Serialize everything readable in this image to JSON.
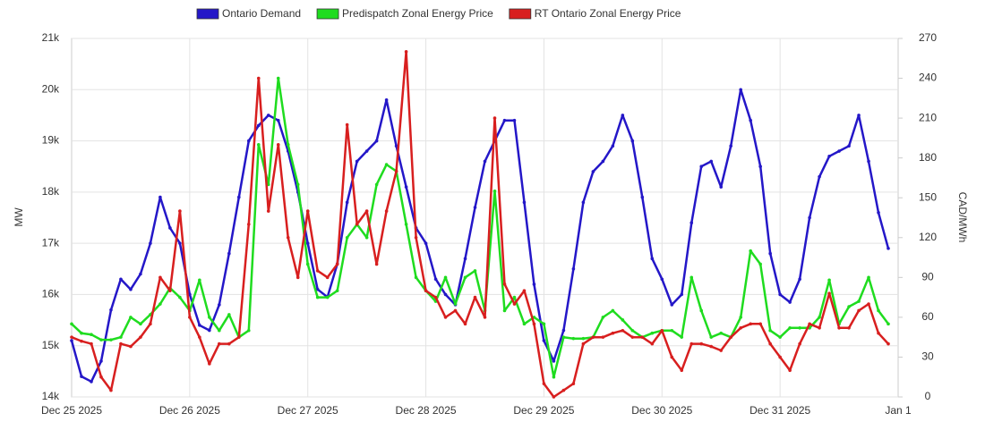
{
  "chart_data": {
    "type": "line",
    "categories": [
      "Dec 25 2025",
      null,
      null,
      null,
      null,
      null,
      null,
      null,
      null,
      null,
      null,
      null,
      "Dec 26 2025",
      null,
      null,
      null,
      null,
      null,
      null,
      null,
      null,
      null,
      null,
      null,
      "Dec 27 2025",
      null,
      null,
      null,
      null,
      null,
      null,
      null,
      null,
      null,
      null,
      null,
      "Dec 28 2025",
      null,
      null,
      null,
      null,
      null,
      null,
      null,
      null,
      null,
      null,
      null,
      "Dec 29 2025",
      null,
      null,
      null,
      null,
      null,
      null,
      null,
      null,
      null,
      null,
      null,
      "Dec 30 2025",
      null,
      null,
      null,
      null,
      null,
      null,
      null,
      null,
      null,
      null,
      null,
      "Dec 31 2025",
      null,
      null,
      null,
      null,
      null,
      null,
      null,
      null,
      null,
      null,
      null,
      "Jan 1"
    ],
    "ylabel": "MW",
    "y2label": "CAD/MWh",
    "ylim": [
      14000,
      21000
    ],
    "yticks": [
      {
        "value": 14000,
        "label": "14k"
      },
      {
        "value": 15000,
        "label": "15k"
      },
      {
        "value": 16000,
        "label": "16k"
      },
      {
        "value": 17000,
        "label": "17k"
      },
      {
        "value": 18000,
        "label": "18k"
      },
      {
        "value": 19000,
        "label": "19k"
      },
      {
        "value": 20000,
        "label": "20k"
      },
      {
        "value": 21000,
        "label": "21k"
      }
    ],
    "y2lim": [
      0,
      270
    ],
    "y2ticks": [
      0,
      30,
      60,
      90,
      120,
      150,
      180,
      210,
      240,
      270
    ],
    "grid": true,
    "legend": "top",
    "series": [
      {
        "name": "Ontario Demand",
        "color": "#2417c8",
        "values": [
          15100,
          14400,
          14300,
          14700,
          15700,
          16300,
          16100,
          16400,
          17000,
          17900,
          17300,
          17000,
          16000,
          15400,
          15300,
          15800,
          16800,
          17900,
          19000,
          19300,
          19500,
          19400,
          18800,
          18000,
          17000,
          16100,
          15950,
          16600,
          17800,
          18600,
          18800,
          19000,
          19800,
          18900,
          18100,
          17300,
          17000,
          16300,
          16000,
          15800,
          16700,
          17700,
          18600,
          19000,
          19400,
          19400,
          17800,
          16200,
          15100,
          14700,
          15300,
          16500,
          17800,
          18400,
          18600,
          18900,
          19500,
          19000,
          17900,
          16700,
          16300,
          15800,
          16000,
          17400,
          18500,
          18600,
          18100,
          18900,
          20000,
          19400,
          18500,
          16800,
          16000,
          15850,
          16300,
          17500,
          18300,
          18700,
          18800,
          18900,
          19500,
          18600,
          17600,
          16900,
          null
        ]
      },
      {
        "name": "Predispatch Zonal Energy Price",
        "color": "#1fdc1f",
        "axis": "y2",
        "values": [
          55,
          48,
          47,
          43,
          43,
          45,
          60,
          55,
          62,
          70,
          82,
          75,
          65,
          88,
          60,
          50,
          62,
          45,
          50,
          190,
          160,
          240,
          190,
          160,
          100,
          75,
          75,
          80,
          120,
          130,
          120,
          160,
          175,
          170,
          130,
          90,
          80,
          72,
          90,
          70,
          90,
          95,
          65,
          155,
          65,
          75,
          55,
          60,
          55,
          15,
          45,
          44,
          44,
          45,
          60,
          65,
          58,
          50,
          45,
          48,
          50,
          50,
          45,
          90,
          65,
          45,
          48,
          45,
          60,
          110,
          100,
          50,
          45,
          52,
          52,
          52,
          60,
          88,
          55,
          68,
          72,
          90,
          65,
          55,
          null
        ]
      },
      {
        "name": "RT Ontario Zonal Energy Price",
        "color": "#d81f1f",
        "axis": "y2",
        "values": [
          45,
          42,
          40,
          15,
          5,
          40,
          38,
          45,
          55,
          90,
          80,
          140,
          60,
          45,
          25,
          40,
          40,
          45,
          130,
          240,
          140,
          190,
          120,
          90,
          140,
          95,
          90,
          100,
          205,
          130,
          140,
          100,
          140,
          170,
          260,
          120,
          80,
          75,
          60,
          65,
          55,
          75,
          60,
          210,
          85,
          70,
          80,
          55,
          10,
          0,
          5,
          10,
          40,
          45,
          45,
          48,
          50,
          45,
          45,
          40,
          50,
          30,
          20,
          40,
          40,
          38,
          35,
          45,
          52,
          55,
          55,
          40,
          30,
          20,
          40,
          55,
          52,
          78,
          52,
          52,
          65,
          70,
          48,
          40,
          null
        ]
      }
    ]
  }
}
